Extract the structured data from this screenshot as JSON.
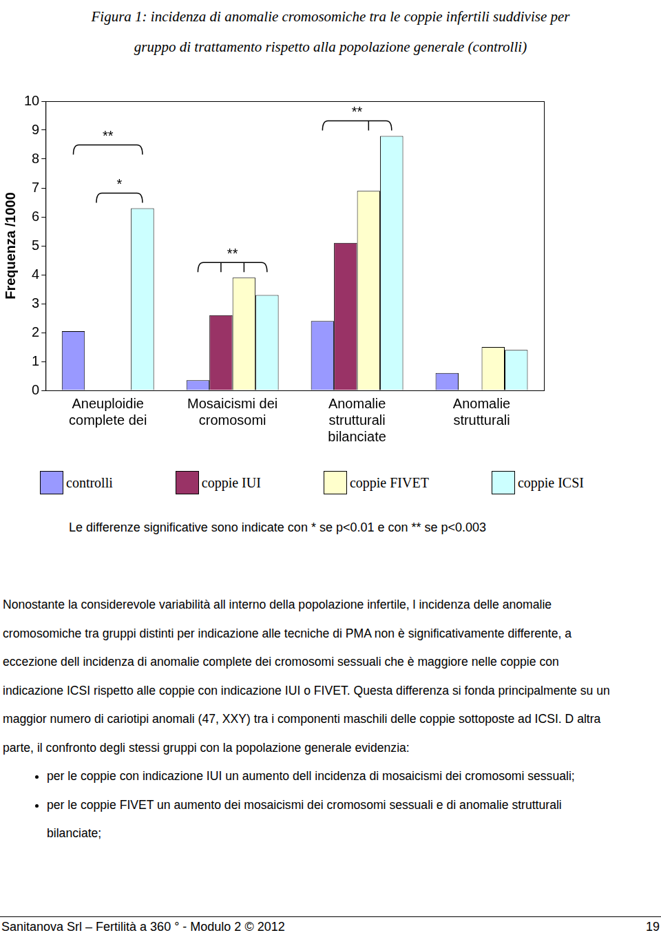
{
  "chart_data": {
    "type": "bar",
    "title": [
      "Figura 1: incidenza di anomalie cromosomiche tra le coppie infertili suddivise per",
      "gruppo di trattamento rispetto alla popolazione generale (controlli)"
    ],
    "y_label": "Frequenza /1000",
    "categories": [
      [
        "Aneuploidie",
        "complete dei"
      ],
      [
        "Mosaicismi dei",
        "cromosomi"
      ],
      [
        "Anomalie",
        "strutturali",
        "bilanciate"
      ],
      [
        "Anomalie",
        "strutturali"
      ]
    ],
    "series": [
      {
        "name": "controlli",
        "color": "#9999ff",
        "values": [
          2.05,
          0.35,
          2.4,
          0.6
        ]
      },
      {
        "name": "coppie IUI",
        "color": "#993366",
        "values": [
          0,
          2.6,
          5.1,
          0
        ]
      },
      {
        "name": "coppie FIVET",
        "color": "#ffffcc",
        "values": [
          0,
          3.9,
          6.9,
          1.5
        ]
      },
      {
        "name": "coppie ICSI",
        "color": "#ccffff",
        "values": [
          6.3,
          3.3,
          8.8,
          1.4
        ]
      }
    ],
    "ylim": [
      0,
      10
    ],
    "yticks": [
      0,
      1,
      2,
      3,
      4,
      5,
      6,
      7,
      8,
      9,
      10
    ],
    "grid": false,
    "legend": "bottom",
    "annotations": [
      {
        "text": "*",
        "category": 0,
        "series": [
          "coppie IUI",
          "coppie ICSI"
        ]
      },
      {
        "text": "**",
        "category": 0,
        "series": [
          "controlli",
          "coppie ICSI"
        ]
      },
      {
        "text": "**",
        "category": 1,
        "series": [
          "controlli",
          "coppie IUI",
          "coppie FIVET",
          "coppie ICSI"
        ]
      },
      {
        "text": "**",
        "category": 2,
        "series": [
          "controlli",
          "coppie FIVET",
          "coppie ICSI"
        ]
      }
    ]
  },
  "note": "Le differenze significative sono indicate con * se p<0.01 e con ** se p<0.003",
  "body": {
    "paragraph": "Nonostante la considerevole variabilità all interno della popolazione infertile, l incidenza delle anomalie cromosomiche tra gruppi distinti per indicazione alle tecniche di PMA non è significativamente differente, a eccezione dell incidenza di anomalie complete dei cromosomi sessuali che è maggiore nelle coppie con indicazione ICSI rispetto alle coppie con indicazione IUI o FIVET. Questa differenza si fonda principalmente su un maggior numero di cariotipi anomali (47, XXY) tra i componenti maschili delle coppie sottoposte ad ICSI. D altra parte, il confronto degli stessi gruppi con la popolazione generale evidenzia:",
    "bullets": [
      "per le coppie con indicazione IUI un aumento dell incidenza di mosaicismi dei cromosomi sessuali;",
      "per le coppie FIVET un aumento dei mosaicismi dei cromosomi sessuali e di anomalie strutturali bilanciate;"
    ]
  },
  "footer": {
    "text": "Sanitanova Srl – Fertilità a 360 ° - Modulo 2 © 2012",
    "page": "19"
  }
}
